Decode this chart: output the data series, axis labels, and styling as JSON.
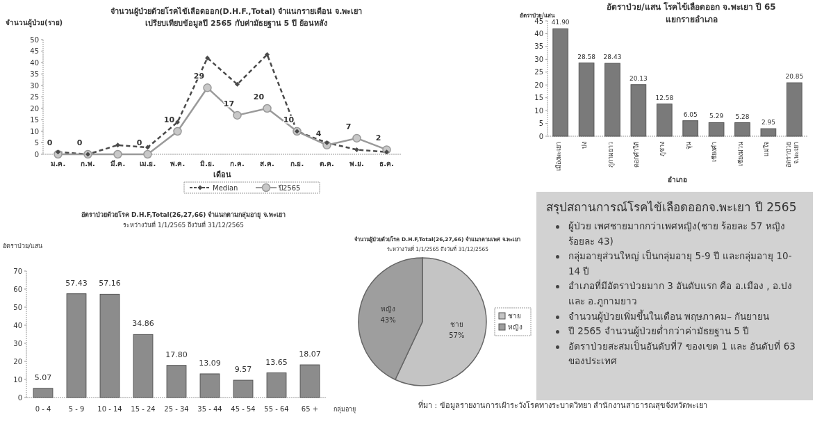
{
  "chart_data": [
    {
      "type": "line",
      "title": "จำนวนผู้ป่วยด้วยโรคไข้เลือดออก(D.H.F.,Total) จำแนกรายเดือน  จ.พะเยา",
      "subtitle": "เปรียบเทียบข้อมูลปี 2565 กับค่ามัธยฐาน 5 ปี ย้อนหลัง",
      "xlabel": "เดือน",
      "ylabel": "จำนวนผู้ป่วย(ราย)",
      "categories": [
        "ม.ค.",
        "ก.พ.",
        "มี.ค.",
        "เม.ย.",
        "พ.ค.",
        "มิ.ย.",
        "ก.ค.",
        "ส.ค.",
        "ก.ย.",
        "ต.ค.",
        "พ.ย.",
        "ธ.ค."
      ],
      "series": [
        {
          "name": "Median",
          "color": "#4a4a4a",
          "line_style": "dashed",
          "marker": "diamond",
          "values": [
            1,
            0,
            4,
            3,
            14,
            42,
            30.5,
            43.5,
            10,
            5,
            2,
            1
          ]
        },
        {
          "name": "ปี2565",
          "color": "#9a9a9a",
          "line_style": "solid",
          "marker": "circle",
          "values": [
            0,
            0,
            0,
            0,
            10,
            29,
            17,
            20,
            10,
            4,
            7,
            2
          ],
          "value_labels": [
            "0",
            "0",
            null,
            "0",
            "10",
            "29",
            "17",
            "20",
            "10",
            "4",
            "7",
            "2"
          ]
        }
      ],
      "ylim": [
        0,
        50
      ],
      "yticks": [
        0,
        5,
        10,
        15,
        20,
        25,
        30,
        35,
        40,
        45,
        50
      ],
      "legend": "bottom"
    },
    {
      "type": "bar",
      "title": "อัตราป่วย/แสน โรคไข้เลือดออก จ.พะเยา ปี 65",
      "subtitle": "แยกรายอำเภอ",
      "xlabel": "อำเภอ",
      "ylabel": "อัตราป่วย/แสน",
      "categories": [
        "เมืองพะเยา",
        "ปง",
        "ภูกามยาว",
        "ดอกคำใต้",
        "ภูซาง",
        "จุน",
        "เชียงคำ",
        "เชียงม่วน",
        "แม่ใจ",
        "อัตราป่วย\nจ.พะเยา"
      ],
      "values": [
        41.9,
        28.58,
        28.43,
        20.13,
        12.58,
        6.05,
        5.29,
        5.28,
        2.95,
        20.85
      ],
      "color": "#7a7a7a",
      "value_labels": [
        "41.90",
        "28.58",
        "28.43",
        "20.13",
        "12.58",
        "6.05",
        "5.29",
        "5.28",
        "2.95",
        "20.85"
      ],
      "ylim": [
        0,
        45
      ],
      "yticks": [
        0,
        5,
        10,
        15,
        20,
        25,
        30,
        35,
        40,
        45
      ]
    },
    {
      "type": "bar",
      "title": "อัตราป่วยด้วยโรค D.H.F,Total(26,27,66)  จำแนกตามกลุ่มอายุ  จ.พะเยา",
      "subtitle": "ระหว่างวันที่  1/1/2565  ถึงวันที่  31/12/2565",
      "xlabel": "กลุ่มอายุ",
      "ylabel": "อัตราป่วย/แสน",
      "categories": [
        "0 - 4",
        "5 - 9",
        "10 - 14",
        "15 - 24",
        "25 - 34",
        "35 - 44",
        "45 - 54",
        "55 - 64",
        "65 +"
      ],
      "values": [
        5.07,
        57.43,
        57.16,
        34.86,
        17.8,
        13.09,
        9.57,
        13.65,
        18.07
      ],
      "color": "#8c8c8c",
      "value_labels": [
        "5.07",
        "57.43",
        "57.16",
        "34.86",
        "17.80",
        "13.09",
        "9.57",
        "13.65",
        "18.07"
      ],
      "ylim": [
        0,
        70
      ],
      "yticks": [
        0,
        10,
        20,
        30,
        40,
        50,
        60,
        70
      ]
    },
    {
      "type": "pie",
      "title": "จำนวนผู้ป่วยด้วยโรค D.H.F,Total(26,27,66)  จำแนกตามเพศ  จ.พะเยา",
      "subtitle": "ระหว่างวันที่  1/1/2565  ถึงวันที่  31/12/2565",
      "categories": [
        "ชาย",
        "หญิง"
      ],
      "values": [
        57,
        43
      ],
      "colors": [
        "#c4c4c4",
        "#9e9e9e"
      ],
      "value_labels": [
        "57%",
        "43%"
      ],
      "legend": "right",
      "annotations": [
        "ที่มา : ข้อมูลรายงานการเฝ้าระวังโรคทางระบาดวิทยา   สำนักงานสาธารณสุขจังหวัดพะเยา"
      ]
    },
    {
      "type": "other",
      "title": "สรุปสถานการณ์โรคไข้เลือดออกจ.พะเยา ปี 2565",
      "annotations": [
        "ผู้ป่วย เพศชายมากกว่าเพศหญิง(ชาย ร้อยละ 57 หญิง ร้อยละ 43)",
        "กลุ่มอายุส่วนใหญ่ เป็นกลุ่มอายุ 5-9 ปี และกลุ่มอายุ 10-14 ปี",
        "อำเภอที่มีอัตราป่วยมาก 3 อันดับแรก คือ อ.เมือง , อ.ปง และ อ.ภูกามยาว",
        "จำนวนผู้ป่วยเพิ่มขึ้นในเดือน พฤษภาคม– กันยายน",
        "ปี 2565 จำนวนผู้ป่วยต่ำกว่าค่ามัธยฐาน 5 ปี",
        "อัตราป่วยสะสมเป็นอันดับที่7 ของเขต 1 และ อันดับที่  63 ของประเทศ"
      ]
    }
  ]
}
